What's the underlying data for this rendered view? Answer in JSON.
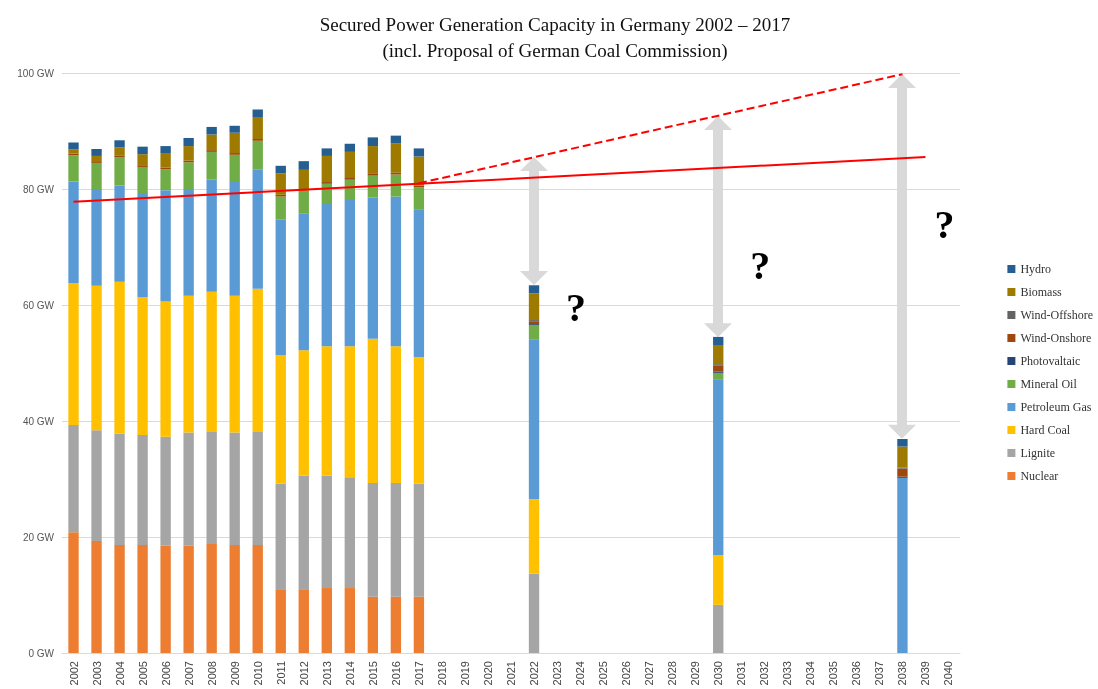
{
  "chart_data": {
    "type": "bar",
    "title": "Secured Power Generation Capacity in Germany 2002 – 2017\n(incl. Proposal of German Coal Commission)",
    "categories": [
      "2002",
      "2003",
      "2004",
      "2005",
      "2006",
      "2007",
      "2008",
      "2009",
      "2010",
      "2011",
      "2012",
      "2013",
      "2014",
      "2015",
      "2016",
      "2017",
      "2018",
      "2019",
      "2020",
      "2021",
      "2022",
      "2023",
      "2024",
      "2025",
      "2026",
      "2027",
      "2028",
      "2029",
      "2030",
      "2031",
      "2032",
      "2033",
      "2034",
      "2035",
      "2036",
      "2037",
      "2038",
      "2039",
      "2040"
    ],
    "stacked": true,
    "series": [
      {
        "name": "Nuclear",
        "color": "#ed7d31",
        "values": [
          20.8,
          19.3,
          18.6,
          18.6,
          18.5,
          18.5,
          18.8,
          18.6,
          18.6,
          11.0,
          11.0,
          11.2,
          11.2,
          9.7,
          9.7,
          9.7,
          null,
          null,
          null,
          null,
          null,
          null,
          null,
          null,
          null,
          null,
          null,
          null,
          null,
          null,
          null,
          null,
          null,
          null,
          null,
          null,
          null,
          null,
          null
        ]
      },
      {
        "name": "Lignite",
        "color": "#a5a5a5",
        "values": [
          18.5,
          19.1,
          19.2,
          19.0,
          18.8,
          19.5,
          19.3,
          19.4,
          19.5,
          18.2,
          19.6,
          19.4,
          19.1,
          19.6,
          19.6,
          19.5,
          null,
          null,
          null,
          null,
          13.7,
          null,
          null,
          null,
          null,
          null,
          null,
          null,
          8.3,
          null,
          null,
          null,
          null,
          null,
          null,
          null,
          null,
          null,
          null
        ]
      },
      {
        "name": "Hard Coal",
        "color": "#ffc000",
        "values": [
          24.5,
          24.9,
          26.2,
          23.8,
          23.3,
          23.6,
          24.2,
          23.6,
          24.7,
          22.2,
          21.6,
          22.3,
          22.6,
          24.9,
          23.6,
          21.8,
          null,
          null,
          null,
          null,
          12.8,
          null,
          null,
          null,
          null,
          null,
          null,
          null,
          8.6,
          null,
          null,
          null,
          null,
          null,
          null,
          null,
          null,
          null,
          null
        ]
      },
      {
        "name": "Petroleum Gas",
        "color": "#5b9bd5",
        "values": [
          17.5,
          16.7,
          16.6,
          17.9,
          19.2,
          18.4,
          19.4,
          19.6,
          20.5,
          23.4,
          23.6,
          24.5,
          25.2,
          24.3,
          25.8,
          25.4,
          null,
          null,
          null,
          null,
          27.5,
          null,
          null,
          null,
          null,
          null,
          null,
          null,
          30.2,
          null,
          null,
          null,
          null,
          null,
          null,
          null,
          30.2,
          null,
          null
        ]
      },
      {
        "name": "Mineral Oil",
        "color": "#70ad47",
        "values": [
          4.5,
          4.5,
          4.9,
          4.5,
          3.6,
          4.6,
          4.7,
          4.7,
          5.0,
          3.9,
          3.9,
          3.5,
          3.5,
          3.8,
          3.8,
          3.9,
          null,
          null,
          null,
          null,
          2.5,
          null,
          null,
          null,
          null,
          null,
          null,
          null,
          1.2,
          null,
          null,
          null,
          null,
          null,
          null,
          null,
          null,
          null,
          null
        ]
      },
      {
        "name": "Photovaltaic",
        "color": "#264478",
        "values": [
          null,
          null,
          null,
          null,
          null,
          null,
          null,
          null,
          null,
          null,
          null,
          null,
          null,
          null,
          null,
          null,
          null,
          null,
          null,
          null,
          0.2,
          null,
          null,
          null,
          null,
          null,
          null,
          null,
          0.2,
          null,
          null,
          null,
          null,
          null,
          null,
          null,
          0.2,
          null,
          null
        ]
      },
      {
        "name": "Wind-Onshore",
        "color": "#9e480e",
        "values": [
          0.3,
          0.3,
          0.3,
          0.3,
          0.3,
          0.3,
          0.3,
          0.3,
          0.3,
          0.3,
          null,
          0.3,
          0.3,
          0.3,
          0.3,
          0.3,
          null,
          null,
          null,
          null,
          0.5,
          null,
          null,
          null,
          null,
          null,
          null,
          null,
          1.1,
          null,
          null,
          null,
          null,
          null,
          null,
          null,
          1.4,
          null,
          null
        ]
      },
      {
        "name": "Wind-Offshore",
        "color": "#636363",
        "values": [
          null,
          null,
          null,
          null,
          null,
          null,
          null,
          null,
          null,
          null,
          null,
          null,
          null,
          null,
          null,
          null,
          null,
          null,
          null,
          null,
          0.2,
          null,
          null,
          null,
          null,
          null,
          null,
          null,
          0.2,
          null,
          null,
          null,
          null,
          null,
          null,
          null,
          0.2,
          null,
          null
        ]
      },
      {
        "name": "Biomass",
        "color": "#9e7a00",
        "values": [
          0.7,
          0.9,
          1.4,
          1.9,
          2.5,
          2.5,
          2.7,
          3.5,
          3.8,
          3.7,
          3.6,
          4.5,
          4.5,
          4.8,
          5.1,
          5.0,
          null,
          null,
          null,
          null,
          4.6,
          null,
          null,
          null,
          null,
          null,
          null,
          null,
          3.3,
          null,
          null,
          null,
          null,
          null,
          null,
          null,
          3.6,
          null,
          null
        ]
      },
      {
        "name": "Hydro",
        "color": "#255e91",
        "values": [
          1.2,
          1.2,
          1.2,
          1.3,
          1.2,
          1.4,
          1.3,
          1.2,
          1.3,
          1.3,
          1.5,
          1.3,
          1.4,
          1.5,
          1.3,
          1.4,
          null,
          null,
          null,
          null,
          1.4,
          null,
          null,
          null,
          null,
          null,
          null,
          null,
          1.4,
          null,
          null,
          null,
          null,
          null,
          null,
          null,
          1.3,
          null,
          null
        ]
      },
      {
        "type": "line",
        "color": "#ff0000",
        "line_style": "solid",
        "values": [
          77.8,
          null,
          null,
          null,
          null,
          null,
          null,
          null,
          null,
          null,
          null,
          null,
          null,
          null,
          null,
          null,
          null,
          null,
          null,
          null,
          null,
          null,
          null,
          null,
          null,
          null,
          null,
          null,
          null,
          null,
          null,
          null,
          null,
          null,
          null,
          null,
          null,
          85.5,
          null
        ]
      },
      {
        "type": "line",
        "color": "#ff0000",
        "line_style": "dashed",
        "values": [
          null,
          null,
          null,
          null,
          null,
          null,
          null,
          null,
          null,
          null,
          null,
          null,
          null,
          null,
          null,
          81.0,
          null,
          null,
          null,
          null,
          null,
          null,
          null,
          null,
          null,
          null,
          null,
          null,
          null,
          null,
          null,
          null,
          null,
          null,
          null,
          null,
          99.8,
          null,
          null
        ]
      }
    ],
    "ylim": [
      0,
      100
    ],
    "yticks": [
      {
        "value": 0,
        "label": "0 GW"
      },
      {
        "value": 20,
        "label": "20 GW"
      },
      {
        "value": 40,
        "label": "40 GW"
      },
      {
        "value": 60,
        "label": "60 GW"
      },
      {
        "value": 80,
        "label": "80 GW"
      },
      {
        "value": 100,
        "label": "100 GW"
      }
    ],
    "grid": "y",
    "legend": "right",
    "marker": "none",
    "annotations": [
      "?",
      "?",
      "?"
    ]
  }
}
